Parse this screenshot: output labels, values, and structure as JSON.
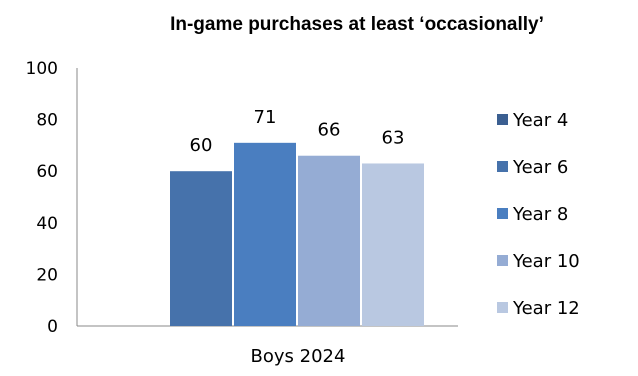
{
  "chart_data": {
    "type": "bar",
    "title": "In-game purchases at least ‘occasionally’",
    "categories": [
      "Boys 2024"
    ],
    "ylim": [
      0,
      100
    ],
    "yticks": [
      0,
      20,
      40,
      60,
      80,
      100
    ],
    "grid": false,
    "legend_position": "right",
    "legend": [
      "Year 4",
      "Year 6",
      "Year 8",
      "Year 10",
      "Year 12"
    ],
    "legend_colors": [
      "#3b5f91",
      "#4672ab",
      "#4a7ec0",
      "#95acd4",
      "#b9c8e1"
    ],
    "series": [
      {
        "label": "60",
        "value": 60,
        "color": "#4672ab"
      },
      {
        "label": "71",
        "value": 71,
        "color": "#4a7ec0"
      },
      {
        "label": "66",
        "value": 66,
        "color": "#95acd4"
      },
      {
        "label": "63",
        "value": 63,
        "color": "#b9c8e1"
      }
    ]
  }
}
